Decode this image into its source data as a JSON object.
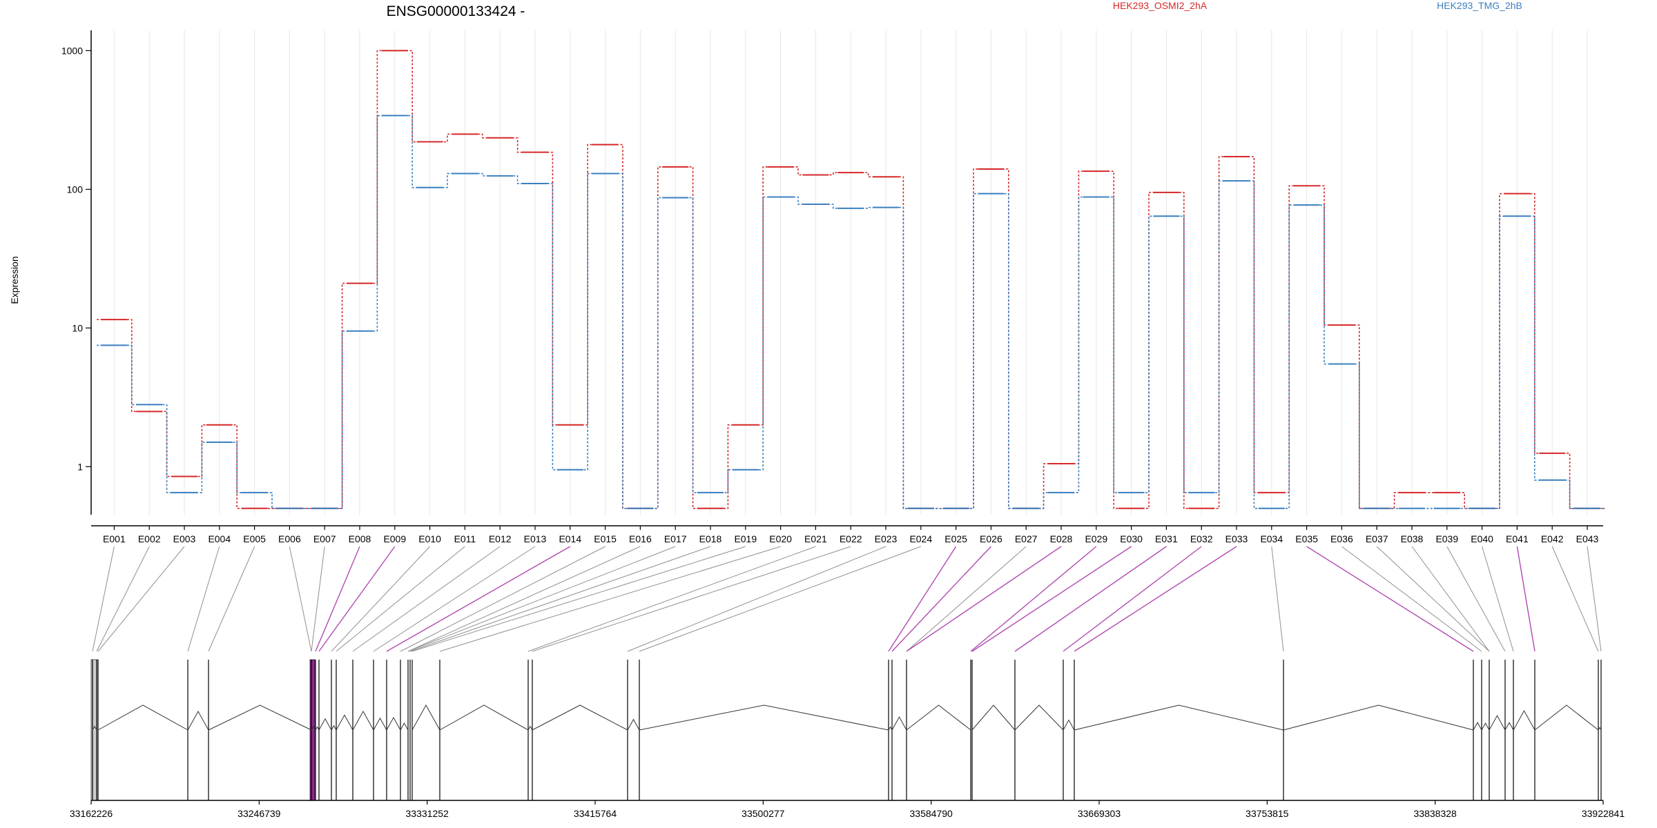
{
  "chart_data": {
    "type": "line",
    "title": "ENSG00000133424 -",
    "ylabel": "Expression",
    "yscale": "log",
    "ylim": [
      0.45,
      1400
    ],
    "yticks": [
      1,
      10,
      100,
      1000
    ],
    "ytick_labels": [
      "1",
      "10",
      "100",
      "1000"
    ],
    "categories": [
      "E001",
      "E002",
      "E003",
      "E004",
      "E005",
      "E006",
      "E007",
      "E008",
      "E009",
      "E010",
      "E011",
      "E012",
      "E013",
      "E014",
      "E015",
      "E016",
      "E017",
      "E018",
      "E019",
      "E020",
      "E021",
      "E022",
      "E023",
      "E024",
      "E025",
      "E026",
      "E027",
      "E028",
      "E029",
      "E030",
      "E031",
      "E032",
      "E033",
      "E034",
      "E035",
      "E036",
      "E037",
      "E038",
      "E039",
      "E040",
      "E041",
      "E042",
      "E043"
    ],
    "series": [
      {
        "name": "HEK293_OSMI2_2hA",
        "color": "#d62728",
        "values": [
          11.5,
          2.5,
          0.85,
          2.0,
          0.5,
          0.5,
          0.5,
          21,
          1000,
          220,
          250,
          235,
          185,
          2.0,
          210,
          0.5,
          145,
          0.5,
          2.0,
          145,
          127,
          132,
          123,
          0.5,
          0.5,
          140,
          0.5,
          1.05,
          135,
          0.5,
          95,
          0.5,
          172,
          0.65,
          106,
          10.5,
          0.5,
          0.65,
          0.65,
          0.5,
          93,
          1.25,
          0.5
        ]
      },
      {
        "name": "HEK293_TMG_2hB",
        "color": "#3a7fbf",
        "values": [
          7.5,
          2.8,
          0.65,
          1.5,
          0.65,
          0.5,
          0.5,
          9.5,
          340,
          103,
          130,
          125,
          110,
          0.95,
          130,
          0.5,
          87,
          0.65,
          0.95,
          88,
          78,
          73,
          74,
          0.5,
          0.5,
          93,
          0.5,
          0.65,
          88,
          0.65,
          64,
          0.65,
          115,
          0.5,
          77,
          5.5,
          0.5,
          0.5,
          0.5,
          0.5,
          64,
          0.8,
          0.5
        ]
      }
    ],
    "genomic_axis": {
      "ticks": [
        33162226,
        33246739,
        33331252,
        33415764,
        33500277,
        33584790,
        33669303,
        33753815,
        33838328,
        33922841
      ],
      "tick_labels": [
        "33162226",
        "33246739",
        "33331252",
        "33415764",
        "33500277",
        "33584790",
        "33669303",
        "33753815",
        "33838328",
        "33922841"
      ]
    },
    "highlighted_exons": [
      "E008",
      "E009",
      "E014",
      "E025",
      "E026",
      "E028",
      "E029",
      "E030",
      "E031",
      "E032",
      "E033",
      "E035",
      "E041"
    ],
    "grid": "vertical"
  }
}
